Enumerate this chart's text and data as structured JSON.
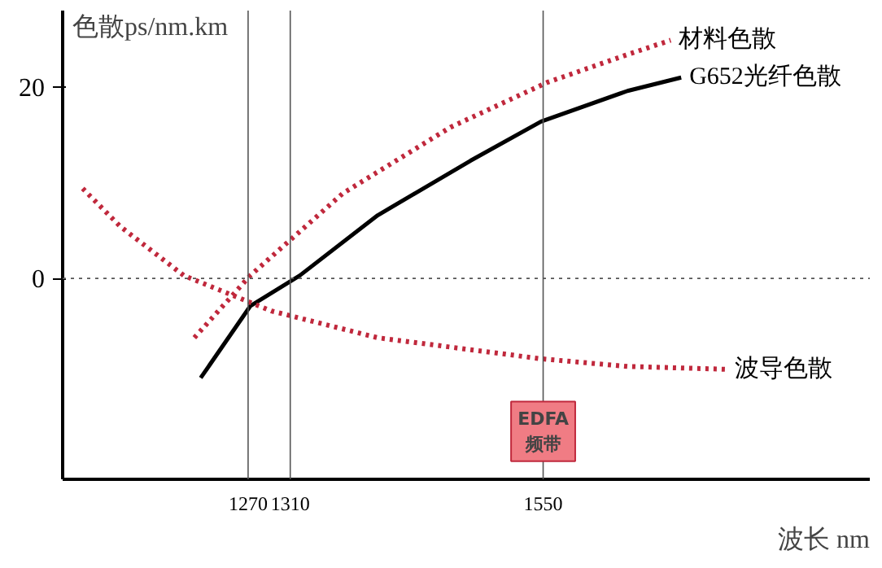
{
  "chart_data": {
    "type": "line",
    "xlabel": "波长 nm",
    "ylabel": "色散ps/nm.km",
    "xlim": [
      1094,
      1860
    ],
    "ylim": [
      -21,
      28
    ],
    "xticks": [
      1270,
      1310,
      1550
    ],
    "yticks": [
      0,
      20
    ],
    "grid": false,
    "series": [
      {
        "name": "材料色散",
        "color": "#c0283c",
        "line_style": "dotted",
        "x": [
          1219,
          1272,
          1360,
          1462,
          1554,
          1630,
          1671
        ],
        "values": [
          -6.2,
          0.3,
          8.9,
          15.8,
          20.5,
          23.4,
          24.9
        ]
      },
      {
        "name": "G652光纤色散",
        "color": "#000000",
        "line_style": "solid",
        "x": [
          1225,
          1272,
          1319,
          1393,
          1481,
          1548,
          1630,
          1681
        ],
        "values": [
          -10.4,
          -2.9,
          0.3,
          6.6,
          12.3,
          16.4,
          19.6,
          21.0
        ]
      },
      {
        "name": "波导色散",
        "color": "#c0283c",
        "line_style": "dotted",
        "x": [
          1113,
          1149,
          1209,
          1292,
          1393,
          1548,
          1630,
          1724
        ],
        "values": [
          9.4,
          5.4,
          0.3,
          -3.4,
          -6.2,
          -8.4,
          -9.2,
          -9.5
        ]
      }
    ],
    "ref_lines": [
      {
        "axis": "y",
        "value": 0,
        "color": "#555555",
        "line_style": "dotted"
      },
      {
        "axis": "x",
        "value": 1270,
        "color": "#555555",
        "line_style": "solid"
      },
      {
        "axis": "x",
        "value": 1310,
        "color": "#555555",
        "line_style": "solid"
      },
      {
        "axis": "x",
        "value": 1550,
        "color": "#555555",
        "line_style": "solid"
      }
    ],
    "annotations": [
      {
        "text": "EDFA\n频带",
        "x": 1550,
        "y": -16
      }
    ]
  }
}
